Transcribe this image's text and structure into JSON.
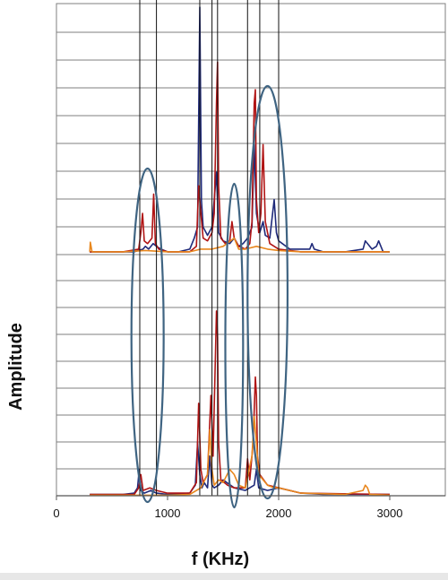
{
  "chart_data": {
    "type": "line",
    "xlabel": "f (KHz)",
    "ylabel": "Amplitude",
    "xlim": [
      0,
      3500
    ],
    "x_ticks": [
      0,
      1000,
      2000,
      3000
    ],
    "x_tick_labels": [
      "0",
      "1000",
      "2000",
      "3000"
    ],
    "grid": true,
    "legend": "none",
    "marker_frequencies": [
      750,
      900,
      1290,
      1400,
      1450,
      1720,
      1830,
      2000
    ],
    "ellipses": [
      {
        "center_f": 820,
        "width_f": 290,
        "spans_panels": "both"
      },
      {
        "center_f": 1600,
        "width_f": 160,
        "spans_panels": "both"
      },
      {
        "center_f": 1900,
        "width_f": 360,
        "spans_panels": "both"
      }
    ],
    "panels": [
      {
        "name": "upper",
        "ylim": [
          0,
          9
        ],
        "series": [
          {
            "color": "#1f2a7a",
            "x": [
              300,
              500,
              700,
              780,
              800,
              830,
              870,
              900,
              940,
              1000,
              1100,
              1200,
              1240,
              1270,
              1290,
              1305,
              1320,
              1360,
              1400,
              1440,
              1460,
              1500,
              1560,
              1600,
              1640,
              1680,
              1720,
              1760,
              1780,
              1800,
              1830,
              1860,
              1880,
              1920,
              1960,
              1980,
              2000,
              2100,
              2200,
              2280,
              2300,
              2320,
              2400,
              2600,
              2760,
              2780,
              2800,
              2840,
              2880,
              2900,
              2940,
              3000
            ],
            "y": [
              0.1,
              0.1,
              0.1,
              0.2,
              0.3,
              0.2,
              0.4,
              0.3,
              0.2,
              0.1,
              0.1,
              0.2,
              0.6,
              1.0,
              9.0,
              2.0,
              1.0,
              0.7,
              1.0,
              3.0,
              0.8,
              0.5,
              0.4,
              0.6,
              0.3,
              0.4,
              0.6,
              1.0,
              4.0,
              1.5,
              0.8,
              1.2,
              0.7,
              0.6,
              2.0,
              0.8,
              0.5,
              0.2,
              0.2,
              0.2,
              0.4,
              0.2,
              0.1,
              0.1,
              0.2,
              0.5,
              0.4,
              0.2,
              0.3,
              0.5,
              0.1,
              0.1
            ]
          },
          {
            "color": "#b01414",
            "x": [
              300,
              600,
              740,
              760,
              775,
              790,
              820,
              860,
              875,
              890,
              920,
              1000,
              1200,
              1260,
              1280,
              1300,
              1320,
              1360,
              1400,
              1420,
              1440,
              1450,
              1460,
              1480,
              1520,
              1560,
              1580,
              1600,
              1640,
              1700,
              1740,
              1760,
              1780,
              1790,
              1800,
              1820,
              1840,
              1860,
              1880,
              1920,
              2000,
              2200,
              2600,
              3000
            ],
            "y": [
              0.1,
              0.1,
              0.2,
              0.8,
              1.5,
              0.5,
              0.4,
              0.6,
              2.2,
              0.4,
              0.2,
              0.1,
              0.1,
              0.3,
              2.5,
              1.5,
              0.6,
              0.5,
              0.8,
              1.5,
              5.5,
              7.0,
              2.5,
              0.6,
              0.4,
              0.5,
              1.2,
              0.6,
              0.3,
              0.2,
              0.4,
              1.2,
              5.5,
              6.0,
              2.0,
              0.8,
              1.5,
              4.0,
              1.2,
              0.4,
              0.2,
              0.1,
              0.1,
              0.1
            ]
          },
          {
            "color": "#e8871e",
            "x": [
              300,
              305,
              320,
              400,
              600,
              800,
              1000,
              1200,
              1300,
              1400,
              1500,
              1600,
              1640,
              1700,
              1800,
              1900,
              2000,
              2200,
              2500,
              2800,
              3000
            ],
            "y": [
              0.1,
              0.45,
              0.1,
              0.1,
              0.1,
              0.15,
              0.1,
              0.1,
              0.2,
              0.2,
              0.3,
              0.6,
              0.2,
              0.2,
              0.3,
              0.2,
              0.15,
              0.1,
              0.1,
              0.1,
              0.1
            ]
          }
        ]
      },
      {
        "name": "lower",
        "ylim": [
          0,
          9
        ],
        "series": [
          {
            "color": "#1f2a7a",
            "x": [
              300,
              600,
              700,
              730,
              745,
              760,
              790,
              850,
              900,
              1000,
              1200,
              1250,
              1270,
              1290,
              1310,
              1330,
              1360,
              1380,
              1400,
              1420,
              1460,
              1500,
              1600,
              1700,
              1780,
              1800,
              1820,
              1900,
              2000,
              2100,
              2200,
              2400,
              2600,
              3000
            ],
            "y": [
              0.05,
              0.05,
              0.1,
              0.3,
              1.0,
              0.2,
              0.1,
              0.2,
              0.1,
              0.05,
              0.1,
              0.4,
              2.0,
              0.8,
              0.3,
              0.5,
              0.3,
              1.5,
              0.4,
              0.3,
              0.4,
              0.6,
              0.3,
              0.2,
              0.4,
              1.0,
              0.3,
              0.2,
              0.3,
              0.2,
              0.1,
              0.05,
              0.05,
              0.05
            ]
          },
          {
            "color": "#b01414",
            "x": [
              300,
              700,
              740,
              760,
              780,
              840,
              900,
              1000,
              1200,
              1260,
              1280,
              1300,
              1320,
              1360,
              1390,
              1410,
              1440,
              1450,
              1460,
              1480,
              1540,
              1600,
              1700,
              1720,
              1740,
              1770,
              1790,
              1800,
              1810,
              1830,
              1900,
              2000,
              2200,
              3000
            ],
            "y": [
              0.05,
              0.05,
              0.3,
              0.8,
              0.2,
              0.3,
              0.2,
              0.1,
              0.1,
              0.5,
              3.5,
              1.0,
              0.5,
              0.8,
              3.8,
              1.5,
              7.0,
              6.0,
              2.0,
              0.6,
              0.4,
              0.3,
              0.3,
              1.4,
              0.6,
              2.0,
              4.5,
              3.8,
              1.5,
              0.8,
              0.4,
              0.3,
              0.1,
              0.05
            ]
          },
          {
            "color": "#e8871e",
            "x": [
              300,
              1000,
              1200,
              1300,
              1360,
              1380,
              1400,
              1420,
              1460,
              1500,
              1560,
              1600,
              1640,
              1700,
              1760,
              1780,
              1800,
              1820,
              1860,
              1900,
              1960,
              2000,
              2200,
              2600,
              2760,
              2780,
              2800,
              2820,
              3000
            ],
            "y": [
              0.02,
              0.02,
              0.05,
              0.3,
              0.8,
              2.5,
              1.0,
              0.4,
              0.6,
              0.5,
              1.0,
              0.8,
              0.4,
              0.3,
              1.5,
              3.0,
              2.0,
              0.8,
              0.6,
              0.4,
              0.3,
              0.3,
              0.1,
              0.05,
              0.2,
              0.4,
              0.3,
              0.05,
              0.02
            ]
          }
        ]
      }
    ]
  }
}
